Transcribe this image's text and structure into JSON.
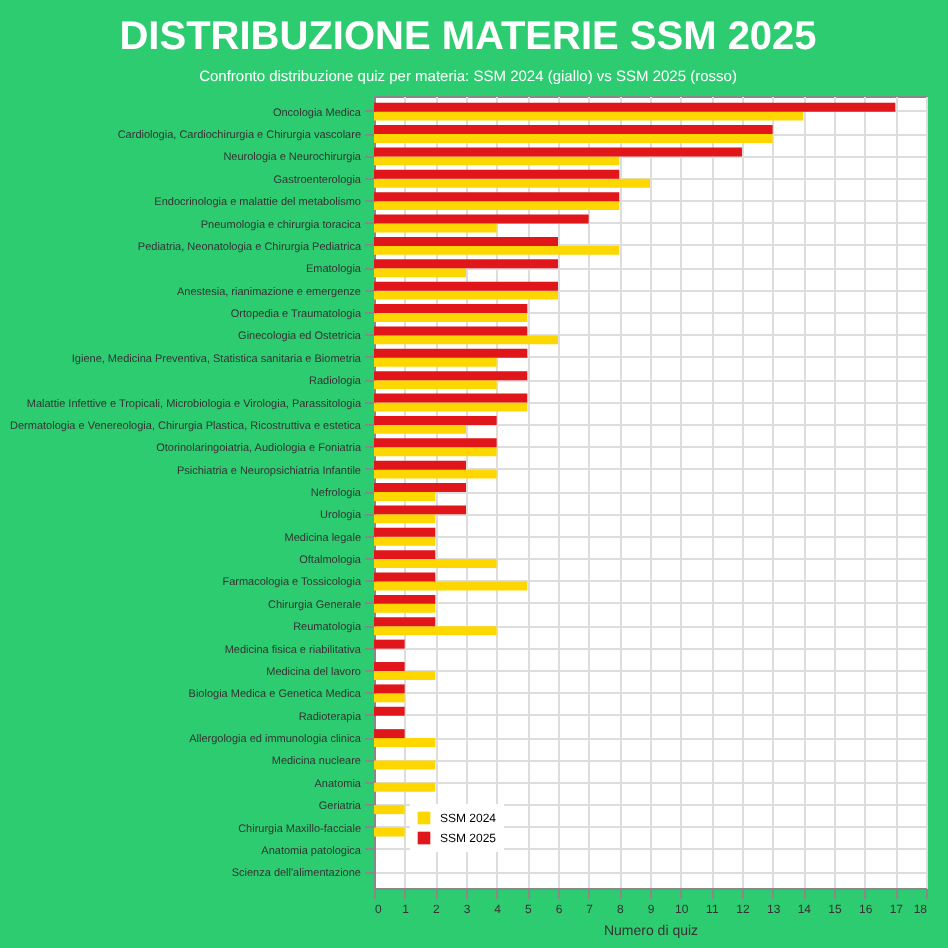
{
  "chart_data": {
    "type": "bar",
    "orientation": "horizontal",
    "title": "DISTRIBUZIONE MATERIE SSM 2025",
    "subtitle": "Confronto distribuzione quiz per materia: SSM 2024 (giallo) vs SSM 2025 (rosso)",
    "xlabel": "Numero di quiz",
    "categories": [
      "Oncologia Medica",
      "Cardiologia, Cardiochirurgia e Chirurgia vascolare",
      "Neurologia e Neurochirurgia",
      "Gastroenterologia",
      "Endocrinologia e malattie del metabolismo",
      "Pneumologia e chirurgia toracica",
      "Pediatria, Neonatologia e Chirurgia Pediatrica",
      "Ematologia",
      "Anestesia, rianimazione e emergenze",
      "Ortopedia e Traumatologia",
      "Ginecologia ed Ostetricia",
      "Igiene, Medicina Preventiva, Statistica sanitaria e Biometria",
      "Radiologia",
      "Malattie Infettive e Tropicali, Microbiologia e Virologia, Parassitologia",
      "Dermatologia e Venereologia, Chirurgia Plastica, Ricostruttiva e estetica",
      "Otorinolaringoiatria, Audiologia e Foniatria",
      "Psichiatria e Neuropsichiatria Infantile",
      "Nefrologia",
      "Urologia",
      "Medicina legale",
      "Oftalmologia",
      "Farmacologia e Tossicologia",
      "Chirurgia Generale",
      "Reumatologia",
      "Medicina fisica e riabilitativa",
      "Medicina del lavoro",
      "Biologia Medica e Genetica Medica",
      "Radioterapia",
      "Allergologia ed immunologia clinica",
      "Medicina nucleare",
      "Anatomia",
      "Geriatria",
      "Chirurgia Maxillo-facciale",
      "Anatomia patologica",
      "Scienza dell'alimentazione"
    ],
    "series": [
      {
        "name": "SSM 2024",
        "color": "#ffd700",
        "values": [
          14,
          13,
          8,
          9,
          8,
          4,
          8,
          3,
          6,
          5,
          6,
          4,
          4,
          5,
          3,
          4,
          4,
          2,
          2,
          2,
          4,
          5,
          2,
          4,
          0,
          2,
          1,
          0,
          2,
          2,
          2,
          1,
          1,
          0,
          0
        ]
      },
      {
        "name": "SSM 2025",
        "color": "#e0161b",
        "values": [
          17,
          13,
          12,
          8,
          8,
          7,
          6,
          6,
          6,
          5,
          5,
          5,
          5,
          5,
          4,
          4,
          3,
          3,
          3,
          2,
          2,
          2,
          2,
          2,
          1,
          1,
          1,
          1,
          1,
          0,
          0,
          0,
          0,
          0,
          0
        ]
      }
    ],
    "xlim": [
      0,
      18
    ],
    "xticks": [
      0,
      1,
      2,
      3,
      4,
      5,
      6,
      7,
      8,
      9,
      10,
      11,
      12,
      13,
      14,
      15,
      16,
      17,
      18
    ],
    "grid": true,
    "legend": "bottom left"
  }
}
